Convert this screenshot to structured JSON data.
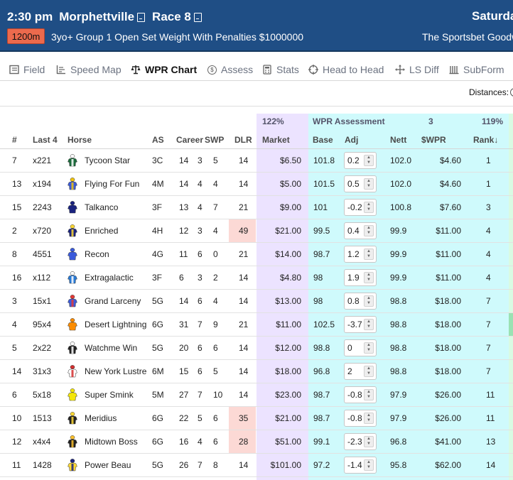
{
  "race": {
    "time": "2:30 pm",
    "venue": "Morphettville",
    "race_label": "Race 8",
    "date": "Saturday",
    "distance": "1200m",
    "description": "3yo+ Group 1 Open Set Weight With Penalties $1000000",
    "race_name": "The Sportsbet Goodw"
  },
  "tabs": [
    {
      "label": "Field",
      "icon": "list-icon",
      "active": false
    },
    {
      "label": "Speed Map",
      "icon": "speed-map-icon",
      "active": false
    },
    {
      "label": "WPR Chart",
      "icon": "scales-icon",
      "active": true
    },
    {
      "label": "Assess",
      "icon": "dollar-icon",
      "active": false
    },
    {
      "label": "Stats",
      "icon": "calculator-icon",
      "active": false
    },
    {
      "label": "Head to Head",
      "icon": "target-icon",
      "active": false
    },
    {
      "label": "LS Diff",
      "icon": "move-icon",
      "active": false
    },
    {
      "label": "SubForm",
      "icon": "bars-icon",
      "active": false
    }
  ],
  "distances_label": "Distances:",
  "groups": {
    "market_pct": "122%",
    "wpr_title": "WPR Assessment",
    "wpr_value": "3",
    "wpr_pct": "119%"
  },
  "columns": {
    "num": "#",
    "last4": "Last 4",
    "horse": "Horse",
    "as": "AS",
    "career": "Career",
    "swp": "SWP",
    "dlr": "DLR",
    "market": "Market",
    "base": "Base",
    "adj": "Adj",
    "nett": "Nett",
    "wpr": "$WPR",
    "rank": "Rank↓"
  },
  "colors": {
    "header_bg": "#1f4e85",
    "distance_badge": "#ec6a4d",
    "market_bg": "#ece3ff",
    "wpr_bg": "#cffafc",
    "dlr_highlight": "#fcd9d5"
  },
  "runners": [
    {
      "num": "7",
      "last4": "x221",
      "horse": "Tycoon Star",
      "as": "3C",
      "c1": "14",
      "c2": "3",
      "c3": "5",
      "dlr": "14",
      "dlr_hl": false,
      "market": "$6.50",
      "base": "101.8",
      "adj": "0.2",
      "nett": "102.0",
      "wpr": "$4.60",
      "rank": "1",
      "silk": [
        "#1c6b3c",
        "#ffffff"
      ],
      "edge": false
    },
    {
      "num": "13",
      "last4": "x194",
      "horse": "Flying For Fun",
      "as": "4M",
      "c1": "14",
      "c2": "4",
      "c3": "4",
      "dlr": "14",
      "dlr_hl": false,
      "market": "$5.00",
      "base": "101.5",
      "adj": "0.5",
      "nett": "102.0",
      "wpr": "$4.60",
      "rank": "1",
      "silk": [
        "#3a5ad9",
        "#f1c40f"
      ],
      "edge": false
    },
    {
      "num": "15",
      "last4": "2243",
      "horse": "Talkanco",
      "as": "3F",
      "c1": "13",
      "c2": "4",
      "c3": "7",
      "dlr": "21",
      "dlr_hl": false,
      "market": "$9.00",
      "base": "101",
      "adj": "-0.2",
      "nett": "100.8",
      "wpr": "$7.60",
      "rank": "3",
      "silk": [
        "#1a237e",
        "#1a237e"
      ],
      "edge": false
    },
    {
      "num": "2",
      "last4": "x720",
      "horse": "Enriched",
      "as": "4H",
      "c1": "12",
      "c2": "3",
      "c3": "4",
      "dlr": "49",
      "dlr_hl": true,
      "market": "$21.00",
      "base": "99.5",
      "adj": "0.4",
      "nett": "99.9",
      "wpr": "$11.00",
      "rank": "4",
      "silk": [
        "#1a237e",
        "#fdd835"
      ],
      "edge": false
    },
    {
      "num": "8",
      "last4": "4551",
      "horse": "Recon",
      "as": "4G",
      "c1": "11",
      "c2": "6",
      "c3": "0",
      "dlr": "21",
      "dlr_hl": false,
      "market": "$14.00",
      "base": "98.7",
      "adj": "1.2",
      "nett": "99.9",
      "wpr": "$11.00",
      "rank": "4",
      "silk": [
        "#3b5bdb",
        "#3b5bdb"
      ],
      "edge": false
    },
    {
      "num": "16",
      "last4": "x112",
      "horse": "Extragalactic",
      "as": "3F",
      "c1": "6",
      "c2": "3",
      "c3": "2",
      "dlr": "14",
      "dlr_hl": false,
      "market": "$4.80",
      "base": "98",
      "adj": "1.9",
      "nett": "99.9",
      "wpr": "$11.00",
      "rank": "4",
      "silk": [
        "#2979d4",
        "#ffffff"
      ],
      "edge": false
    },
    {
      "num": "3",
      "last4": "15x1",
      "horse": "Grand Larceny",
      "as": "5G",
      "c1": "14",
      "c2": "6",
      "c3": "4",
      "dlr": "14",
      "dlr_hl": false,
      "market": "$13.00",
      "base": "98",
      "adj": "0.8",
      "nett": "98.8",
      "wpr": "$18.00",
      "rank": "7",
      "silk": [
        "#3b5bdb",
        "#e53935"
      ],
      "edge": false
    },
    {
      "num": "4",
      "last4": "95x4",
      "horse": "Desert Lightning",
      "as": "6G",
      "c1": "31",
      "c2": "7",
      "c3": "9",
      "dlr": "21",
      "dlr_hl": false,
      "market": "$11.00",
      "base": "102.5",
      "adj": "-3.7",
      "nett": "98.8",
      "wpr": "$18.00",
      "rank": "7",
      "silk": [
        "#fb8c00",
        "#fb8c00"
      ],
      "edge": true
    },
    {
      "num": "5",
      "last4": "2x22",
      "horse": "Watchme Win",
      "as": "5G",
      "c1": "20",
      "c2": "6",
      "c3": "6",
      "dlr": "14",
      "dlr_hl": false,
      "market": "$12.00",
      "base": "98.8",
      "adj": "0",
      "nett": "98.8",
      "wpr": "$18.00",
      "rank": "7",
      "silk": [
        "#222222",
        "#ffffff"
      ],
      "edge": false
    },
    {
      "num": "14",
      "last4": "31x3",
      "horse": "New York Lustre",
      "as": "6M",
      "c1": "15",
      "c2": "6",
      "c3": "5",
      "dlr": "14",
      "dlr_hl": false,
      "market": "$18.00",
      "base": "96.8",
      "adj": "2",
      "nett": "98.8",
      "wpr": "$18.00",
      "rank": "7",
      "silk": [
        "#ffffff",
        "#d32f2f"
      ],
      "edge": false
    },
    {
      "num": "6",
      "last4": "5x18",
      "horse": "Super Smink",
      "as": "5M",
      "c1": "27",
      "c2": "7",
      "c3": "10",
      "dlr": "14",
      "dlr_hl": false,
      "market": "$23.00",
      "base": "98.7",
      "adj": "-0.8",
      "nett": "97.9",
      "wpr": "$26.00",
      "rank": "11",
      "silk": [
        "#f4e60a",
        "#f4e60a"
      ],
      "edge": false
    },
    {
      "num": "10",
      "last4": "1513",
      "horse": "Meridius",
      "as": "6G",
      "c1": "22",
      "c2": "5",
      "c3": "6",
      "dlr": "35",
      "dlr_hl": true,
      "market": "$21.00",
      "base": "98.7",
      "adj": "-0.8",
      "nett": "97.9",
      "wpr": "$26.00",
      "rank": "11",
      "silk": [
        "#222222",
        "#fdd835"
      ],
      "edge": false
    },
    {
      "num": "12",
      "last4": "x4x4",
      "horse": "Midtown Boss",
      "as": "6G",
      "c1": "16",
      "c2": "4",
      "c3": "6",
      "dlr": "28",
      "dlr_hl": true,
      "market": "$51.00",
      "base": "99.1",
      "adj": "-2.3",
      "nett": "96.8",
      "wpr": "$41.00",
      "rank": "13",
      "silk": [
        "#222222",
        "#fbc02d"
      ],
      "edge": false
    },
    {
      "num": "11",
      "last4": "1428",
      "horse": "Power Beau",
      "as": "5G",
      "c1": "26",
      "c2": "7",
      "c3": "8",
      "dlr": "14",
      "dlr_hl": false,
      "market": "$101.00",
      "base": "97.2",
      "adj": "-1.4",
      "nett": "95.8",
      "wpr": "$62.00",
      "rank": "14",
      "silk": [
        "#fdd835",
        "#1a237e"
      ],
      "edge": false
    }
  ]
}
